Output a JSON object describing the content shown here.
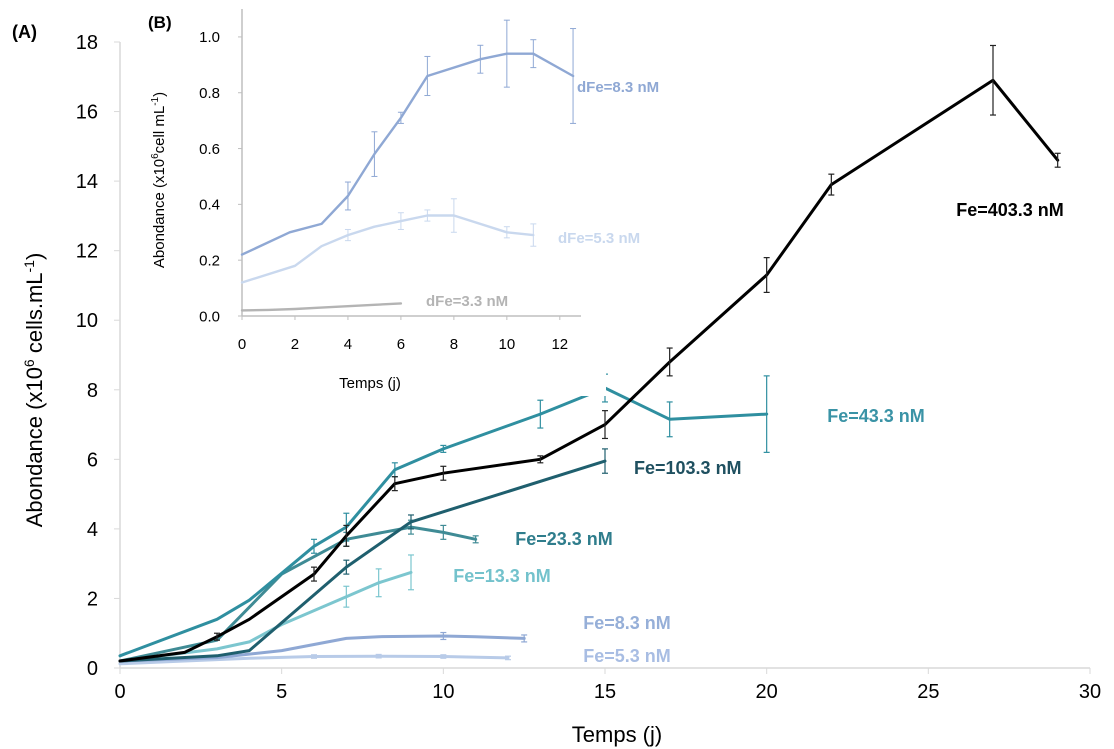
{
  "chart_data": [
    {
      "panel": "(A)",
      "type": "line",
      "xlabel": "Temps (j)",
      "ylabel_main": "Abondance (x10",
      "ylabel_sup1": "6",
      "ylabel_mid": " cells.mL",
      "ylabel_sup2": "-1",
      "ylabel_end": ")",
      "xlim": [
        0,
        30
      ],
      "ylim": [
        0,
        18
      ],
      "xticks": [
        0,
        5,
        10,
        15,
        20,
        25,
        30
      ],
      "yticks": [
        0,
        2,
        4,
        6,
        8,
        10,
        12,
        14,
        16,
        18
      ],
      "grid": false,
      "series": [
        {
          "name": "Fe=403.3 nM",
          "color": "#000000",
          "x": [
            0,
            2,
            3,
            4,
            6,
            7,
            8.5,
            10,
            13,
            15,
            17,
            20,
            22,
            27,
            29
          ],
          "y": [
            0.2,
            0.45,
            0.9,
            1.4,
            2.7,
            3.8,
            5.3,
            5.6,
            6.0,
            7.0,
            8.8,
            11.3,
            13.9,
            16.9,
            14.6
          ],
          "err": [
            0,
            0,
            0.1,
            0,
            0.2,
            0.3,
            0.2,
            0.2,
            0.1,
            0.4,
            0.4,
            0.5,
            0.3,
            1.0,
            0.2
          ]
        },
        {
          "name": "Fe=103.3 nM",
          "color": "#1f5f6e",
          "x": [
            0,
            3,
            4,
            7,
            9,
            15
          ],
          "y": [
            0.2,
            0.35,
            0.5,
            2.9,
            4.2,
            5.95
          ],
          "err": [
            0,
            0,
            0,
            0.2,
            0.2,
            0.35
          ]
        },
        {
          "name": "Fe=43.3 nM",
          "color": "#2f8fa0",
          "x": [
            0,
            3,
            4,
            6,
            7,
            8.5,
            10,
            13,
            15,
            17,
            20
          ],
          "y": [
            0.35,
            1.4,
            1.95,
            3.5,
            4.05,
            5.7,
            6.3,
            7.3,
            8.05,
            7.15,
            7.3
          ],
          "err": [
            0,
            0,
            0,
            0.2,
            0.4,
            0.2,
            0.1,
            0.4,
            0.4,
            0.5,
            1.1
          ]
        },
        {
          "name": "Fe=23.3 nM",
          "color": "#3f8b95",
          "x": [
            0,
            3,
            5,
            7,
            9,
            10,
            11
          ],
          "y": [
            0.2,
            0.8,
            2.7,
            3.7,
            4.05,
            3.9,
            3.7
          ],
          "err": [
            0,
            0,
            0,
            0.2,
            0.2,
            0.2,
            0.1
          ]
        },
        {
          "name": "Fe=13.3 nM",
          "color": "#7cc6cf",
          "x": [
            0,
            3,
            4,
            5,
            7,
            8,
            9
          ],
          "y": [
            0.2,
            0.55,
            0.75,
            1.25,
            2.05,
            2.45,
            2.75
          ],
          "err": [
            0,
            0,
            0,
            0,
            0.3,
            0.4,
            0.5
          ]
        },
        {
          "name": "Fe=8.3 nM",
          "color": "#8fa8d4",
          "x": [
            0,
            3,
            5,
            7,
            8,
            10,
            11,
            12.5
          ],
          "y": [
            0.2,
            0.3,
            0.5,
            0.85,
            0.9,
            0.92,
            0.9,
            0.85
          ],
          "err": [
            0,
            0,
            0,
            0,
            0,
            0.1,
            0,
            0.1
          ]
        },
        {
          "name": "Fe=5.3 nM",
          "color": "#b8cbe8",
          "x": [
            0,
            2,
            4,
            6,
            8,
            10,
            12
          ],
          "y": [
            0.12,
            0.2,
            0.28,
            0.33,
            0.34,
            0.33,
            0.29
          ],
          "err": [
            0,
            0,
            0,
            0.05,
            0.05,
            0.05,
            0.05
          ]
        }
      ]
    },
    {
      "panel": "(B)",
      "type": "line",
      "xlabel": "Temps (j)",
      "ylabel_main": "Abondance (x10",
      "ylabel_sup1": "6",
      "ylabel_mid": "cell mL",
      "ylabel_sup2": "-1",
      "ylabel_end": ")",
      "xlim": [
        0,
        12.8
      ],
      "ylim": [
        0,
        1.1
      ],
      "xticks": [
        0,
        2,
        4,
        6,
        8,
        10,
        12
      ],
      "yticks": [
        0.0,
        0.2,
        0.4,
        0.6,
        0.8,
        1.0
      ],
      "ytick_labels": [
        "0.0",
        "0.2",
        "0.4",
        "0.6",
        "0.8",
        "1.0"
      ],
      "grid": false,
      "series": [
        {
          "name": "dFe=8.3 nM",
          "color": "#8fa8d4",
          "x": [
            0,
            1.8,
            3,
            4,
            5,
            6,
            7,
            9,
            10,
            11,
            12.5
          ],
          "y": [
            0.22,
            0.3,
            0.33,
            0.43,
            0.58,
            0.71,
            0.86,
            0.92,
            0.94,
            0.94,
            0.86
          ],
          "err": [
            0,
            0,
            0,
            0.05,
            0.08,
            0.02,
            0.07,
            0.05,
            0.12,
            0.05,
            0.17
          ]
        },
        {
          "name": "dFe=5.3 nM",
          "color": "#c9d8ee",
          "x": [
            0,
            2,
            3,
            4,
            5,
            6,
            7,
            8,
            10,
            11
          ],
          "y": [
            0.12,
            0.18,
            0.25,
            0.29,
            0.32,
            0.34,
            0.36,
            0.36,
            0.3,
            0.29
          ],
          "err": [
            0,
            0,
            0,
            0.02,
            0,
            0.03,
            0.02,
            0.06,
            0.02,
            0.04
          ]
        },
        {
          "name": "dFe=3.3 nM",
          "color": "#b4b4b4",
          "x": [
            0,
            1,
            2,
            3,
            4,
            5,
            6
          ],
          "y": [
            0.02,
            0.022,
            0.025,
            0.03,
            0.035,
            0.04,
            0.045
          ],
          "err": [
            0,
            0,
            0,
            0,
            0,
            0,
            0
          ]
        }
      ]
    }
  ]
}
